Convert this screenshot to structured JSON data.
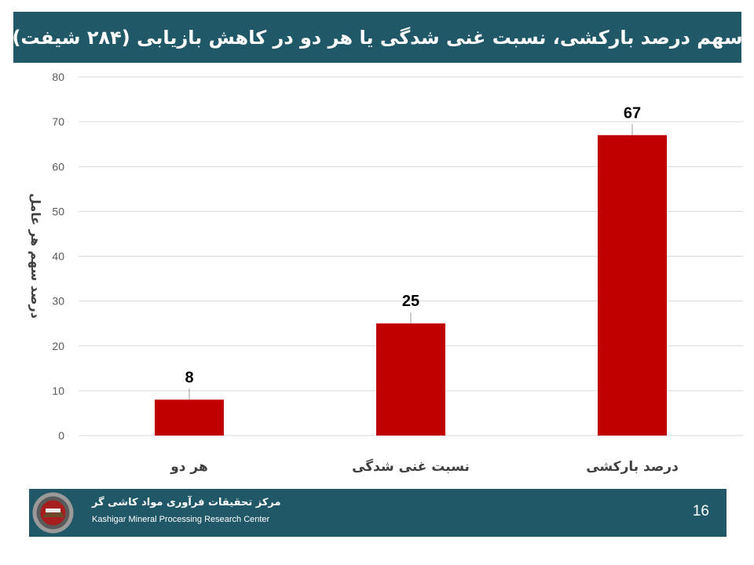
{
  "header": {
    "title": "سهم درصد بارکشی، نسبت غنی شدگی یا هر دو در کاهش بازیابی (۲۸۴ شیفت)"
  },
  "chart_data": {
    "type": "bar",
    "categories": [
      "هر دو",
      "نسبت غنی شدگی",
      "درصد بارکشی"
    ],
    "values": [
      8,
      25,
      67
    ],
    "data_labels": [
      "8",
      "25",
      "67"
    ],
    "title": "سهم درصد بارکشی، نسبت غنی شدگی یا هر دو در کاهش بازیابی (۲۸۴ شیفت)",
    "xlabel": "",
    "ylabel": "درصد سهم هر عامل",
    "ylim": [
      0,
      80
    ],
    "yticks": [
      0,
      10,
      20,
      30,
      40,
      50,
      60,
      70,
      80
    ],
    "ytick_labels": [
      "0",
      "10",
      "20",
      "30",
      "40",
      "50",
      "60",
      "70",
      "80"
    ],
    "grid": true,
    "legend": "none",
    "bar_color": "#C00000"
  },
  "footer": {
    "org_name_fa": "مرکز تحقیقات فرآوری مواد کاشی گر",
    "org_name_en": "Kashigar Mineral Processing Research Center",
    "page_number": "16"
  },
  "colors": {
    "header_bg": "#215868",
    "footer_bg": "#215868",
    "bar": "#C00000",
    "grid": "#d9d9d9",
    "axis_text": "#595959"
  }
}
